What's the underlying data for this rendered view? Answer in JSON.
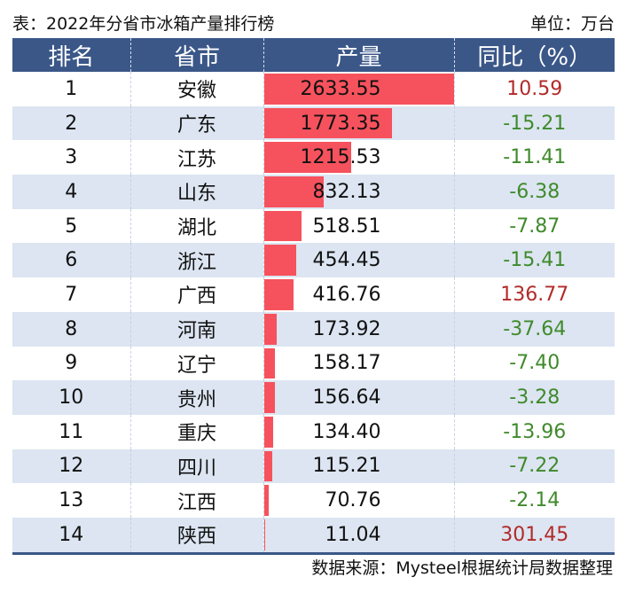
{
  "caption": {
    "title": "表：2022年分省市冰箱产量排行榜",
    "unit": "单位：万台"
  },
  "columns": [
    "排名",
    "省市",
    "产量",
    "同比（%）"
  ],
  "rows": [
    {
      "rank": "1",
      "province": "安徽",
      "output": "2633.55",
      "yoy": "10.59",
      "trend": "pos"
    },
    {
      "rank": "2",
      "province": "广东",
      "output": "1773.35",
      "yoy": "-15.21",
      "trend": "neg"
    },
    {
      "rank": "3",
      "province": "江苏",
      "output": "1215.53",
      "yoy": "-11.41",
      "trend": "neg"
    },
    {
      "rank": "4",
      "province": "山东",
      "output": "832.13",
      "yoy": "-6.38",
      "trend": "neg"
    },
    {
      "rank": "5",
      "province": "湖北",
      "output": "518.51",
      "yoy": "-7.87",
      "trend": "neg"
    },
    {
      "rank": "6",
      "province": "浙江",
      "output": "454.45",
      "yoy": "-15.41",
      "trend": "neg"
    },
    {
      "rank": "7",
      "province": "广西",
      "output": "416.76",
      "yoy": "136.77",
      "trend": "pos"
    },
    {
      "rank": "8",
      "province": "河南",
      "output": "173.92",
      "yoy": "-37.64",
      "trend": "neg"
    },
    {
      "rank": "9",
      "province": "辽宁",
      "output": "158.17",
      "yoy": "-7.40",
      "trend": "neg"
    },
    {
      "rank": "10",
      "province": "贵州",
      "output": "156.64",
      "yoy": "-3.28",
      "trend": "neg"
    },
    {
      "rank": "11",
      "province": "重庆",
      "output": "134.40",
      "yoy": "-13.96",
      "trend": "neg"
    },
    {
      "rank": "12",
      "province": "四川",
      "output": "115.21",
      "yoy": "-7.22",
      "trend": "neg"
    },
    {
      "rank": "13",
      "province": "江西",
      "output": "70.76",
      "yoy": "-2.14",
      "trend": "neg"
    },
    {
      "rank": "14",
      "province": "陕西",
      "output": "11.04",
      "yoy": "301.45",
      "trend": "pos"
    }
  ],
  "colors": {
    "header_bg": "#3a5788",
    "bar": "#f6525d",
    "positive": "#b22a2a",
    "negative": "#3f8a2b",
    "stripe": "#dce5f1"
  },
  "source": "数据来源：Mysteel根据统计局数据整理"
}
